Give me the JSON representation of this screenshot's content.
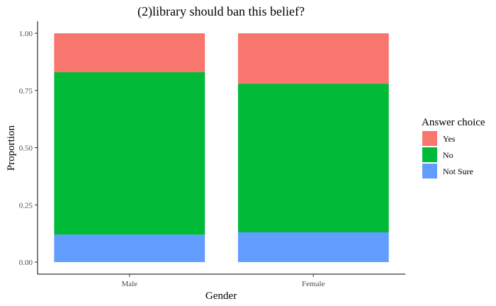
{
  "chart_data": {
    "type": "bar",
    "stacked": true,
    "title": "(2)library should ban this belief?",
    "xlabel": "Gender",
    "ylabel": "Proportion",
    "ylim": [
      0,
      1
    ],
    "yticks": [
      "0.00",
      "0.25",
      "0.50",
      "0.75",
      "1.00"
    ],
    "categories": [
      "Male",
      "Female"
    ],
    "series": [
      {
        "name": "Not Sure",
        "values": [
          0.12,
          0.13
        ],
        "color": "#619CFF"
      },
      {
        "name": "No",
        "values": [
          0.71,
          0.65
        ],
        "color": "#00BA38"
      },
      {
        "name": "Yes",
        "values": [
          0.17,
          0.22
        ],
        "color": "#F8766D"
      }
    ],
    "legend": {
      "title": "Answer choice",
      "position": "right",
      "order": [
        "Yes",
        "No",
        "Not Sure"
      ]
    },
    "grid": false
  }
}
